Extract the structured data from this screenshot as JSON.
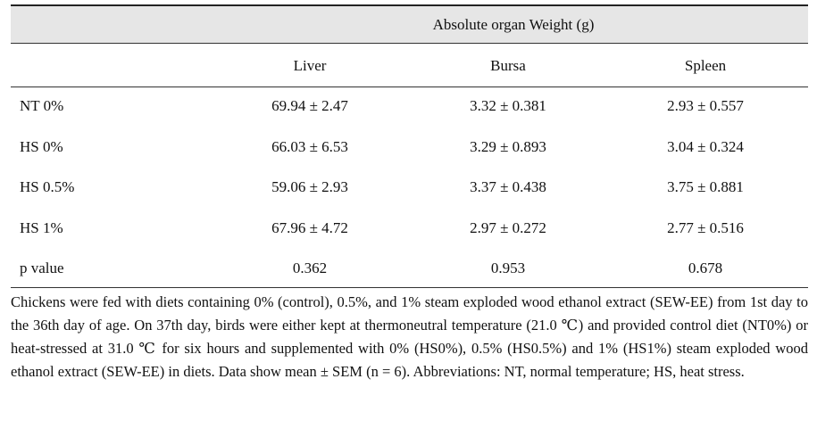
{
  "table": {
    "group_header": "Absolute organ Weight (g)",
    "columns": [
      "Liver",
      "Bursa",
      "Spleen"
    ],
    "rows": [
      [
        "NT 0%",
        "69.94 ± 2.47",
        "3.32 ± 0.381",
        "2.93 ± 0.557"
      ],
      [
        "HS 0%",
        "66.03 ± 6.53",
        "3.29 ± 0.893",
        "3.04 ± 0.324"
      ],
      [
        "HS 0.5%",
        "59.06 ± 2.93",
        "3.37 ± 0.438",
        "3.75 ± 0.881"
      ],
      [
        "HS 1%",
        "67.96 ± 4.72",
        "2.97 ± 0.272",
        "2.77 ± 0.516"
      ],
      [
        "p value",
        "0.362",
        "0.953",
        "0.678"
      ]
    ],
    "footnote": "Chickens were fed with diets containing 0% (control), 0.5%, and 1% steam exploded wood ethanol extract (SEW-EE) from 1st day to the 36th day of age. On 37th day, birds were either kept at thermoneutral temperature (21.0 ℃) and provided control diet (NT0%) or heat-stressed at 31.0 ℃ for six hours and supplemented with 0% (HS0%), 0.5% (HS0.5%) and 1% (HS1%) steam exploded wood ethanol extract (SEW-EE) in diets. Data show mean ± SEM (n = 6).  Abbreviations: NT, normal temperature; HS, heat stress."
  }
}
